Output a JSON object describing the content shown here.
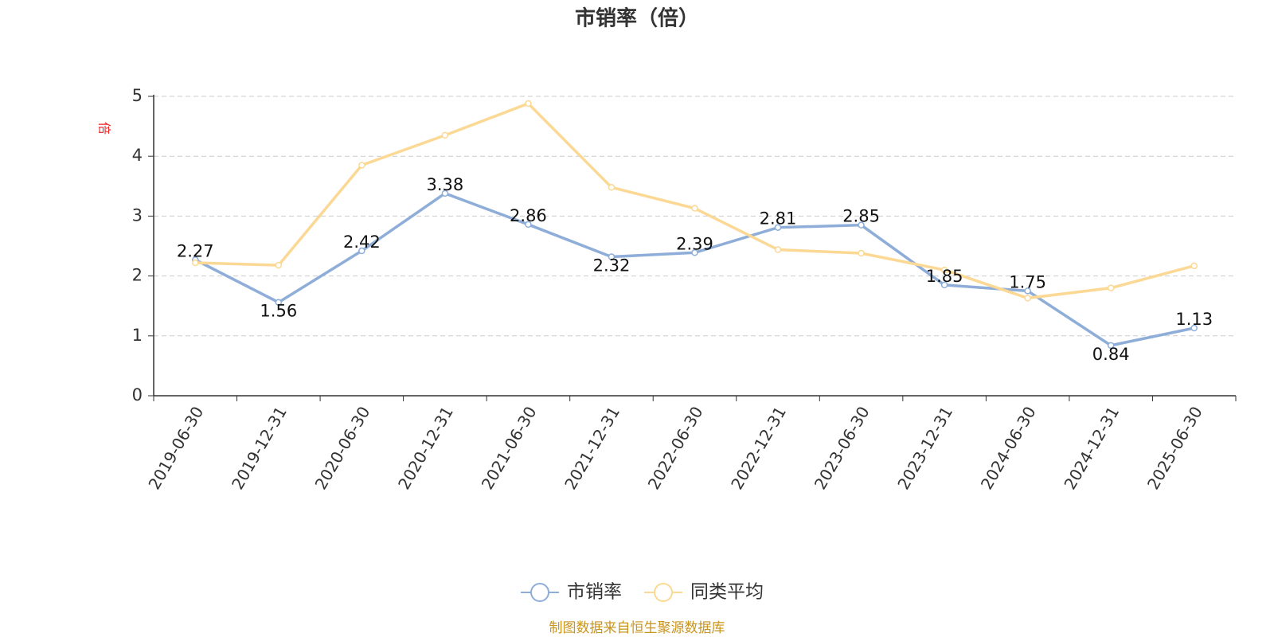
{
  "chart_data": {
    "type": "line",
    "title": "市销率（倍）",
    "y_label": "倍",
    "categories": [
      "2019-06-30",
      "2019-12-31",
      "2020-06-30",
      "2020-12-31",
      "2021-06-30",
      "2021-12-31",
      "2022-06-30",
      "2022-12-31",
      "2023-06-30",
      "2023-12-31",
      "2024-06-30",
      "2024-12-31",
      "2025-06-30"
    ],
    "series": [
      {
        "name": "市销率",
        "color": "#8eadd8",
        "values": [
          2.27,
          1.56,
          2.42,
          3.38,
          2.86,
          2.32,
          2.39,
          2.81,
          2.85,
          1.85,
          1.75,
          0.84,
          1.13
        ]
      },
      {
        "name": "同类平均",
        "color": "#fbd893",
        "values": [
          2.22,
          2.18,
          3.85,
          4.35,
          4.88,
          3.48,
          3.13,
          2.44,
          2.38,
          2.1,
          1.63,
          1.8,
          2.17
        ]
      }
    ],
    "ylim": [
      0,
      5
    ],
    "yticks": [
      0,
      1,
      2,
      3,
      4,
      5
    ],
    "grid": true,
    "source": "制图数据来自恒生聚源数据库"
  }
}
